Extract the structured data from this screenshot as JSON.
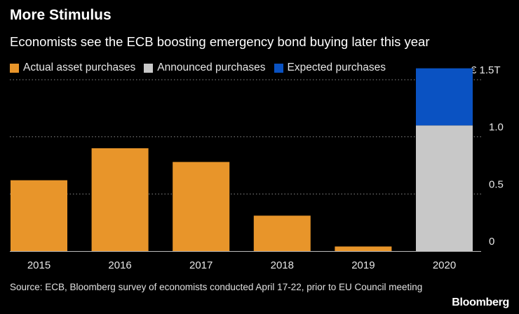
{
  "chart_data": {
    "type": "bar",
    "stacked": true,
    "title": "More Stimulus",
    "subtitle": "Economists see the ECB boosting emergency bond buying later this year",
    "categories": [
      "2015",
      "2016",
      "2017",
      "2018",
      "2019",
      "2020"
    ],
    "series": [
      {
        "name": "Actual asset purchases",
        "color": "#e8952a",
        "values": [
          0.62,
          0.9,
          0.78,
          0.31,
          0.04,
          0
        ]
      },
      {
        "name": "Announced purchases",
        "color": "#c8c8c8",
        "values": [
          0,
          0,
          0,
          0,
          0,
          1.1
        ]
      },
      {
        "name": "Expected purchases",
        "color": "#0a52c2",
        "values": [
          0,
          0,
          0,
          0,
          0,
          0.5
        ]
      }
    ],
    "ylim": [
      0,
      1.6
    ],
    "yticks": [
      0,
      0.5,
      1.0,
      1.5
    ],
    "ytick_labels": [
      "0",
      "0.5",
      "1.0",
      "€ 1.5T"
    ],
    "grid": true,
    "legend_position": "top-left",
    "xlabel": "",
    "ylabel": ""
  },
  "source_text": "Source: ECB, Bloomberg survey of economists conducted April 17-22, prior to EU Council meeting",
  "brand": "Bloomberg"
}
